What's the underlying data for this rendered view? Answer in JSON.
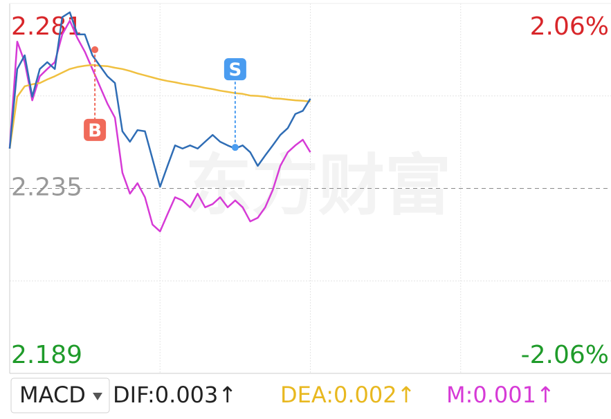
{
  "chart_data": {
    "type": "line",
    "xlim": [
      0,
      240
    ],
    "ylim": [
      2.189,
      2.281
    ],
    "yticks": [
      {
        "value": 2.281,
        "color": "#d8262a"
      },
      {
        "value": 2.235,
        "color": "#999999"
      },
      {
        "value": 2.189,
        "color": "#1f9b2a"
      }
    ],
    "y2lim": [
      -2.06,
      2.06
    ],
    "y2ticks": [
      {
        "value": 2.06,
        "label": "2.06%",
        "color": "#d8262a"
      },
      {
        "value": -2.06,
        "label": "-2.06%",
        "color": "#1f9b2a"
      }
    ],
    "x": [
      0,
      3,
      6,
      9,
      12,
      15,
      18,
      21,
      24,
      27,
      30,
      33,
      36,
      39,
      42,
      45,
      48,
      51,
      54,
      57,
      60,
      63,
      66,
      69,
      72,
      75,
      78,
      81,
      84,
      87,
      90,
      93,
      96,
      99,
      102,
      105,
      108,
      111,
      114,
      117,
      120
    ],
    "series": [
      {
        "color": "#d63ad6",
        "values": [
          2.2449,
          2.2715,
          2.2664,
          2.2569,
          2.2629,
          2.2647,
          2.2664,
          2.2733,
          2.2767,
          2.2724,
          2.269,
          2.2647,
          2.2604,
          2.2561,
          2.2526,
          2.2389,
          2.2337,
          2.2363,
          2.2328,
          2.226,
          2.2243,
          2.2286,
          2.2328,
          2.232,
          2.2303,
          2.2337,
          2.2303,
          2.2311,
          2.2328,
          2.2303,
          2.232,
          2.2303,
          2.2268,
          2.2277,
          2.2303,
          2.2346,
          2.2406,
          2.244,
          2.2457,
          2.2471,
          2.244
        ]
      },
      {
        "color": "#f0c040",
        "values": [
          2.2449,
          2.2578,
          2.2604,
          2.2609,
          2.2612,
          2.2621,
          2.2629,
          2.2638,
          2.2647,
          2.2652,
          2.2655,
          2.2657,
          2.2655,
          2.2654,
          2.265,
          2.2647,
          2.2642,
          2.2636,
          2.2631,
          2.2626,
          2.2621,
          2.2617,
          2.2614,
          2.261,
          2.2607,
          2.2604,
          2.26,
          2.2597,
          2.2593,
          2.259,
          2.2587,
          2.2585,
          2.2581,
          2.258,
          2.2578,
          2.2574,
          2.2573,
          2.2571,
          2.2569,
          2.2568,
          2.2566
        ]
      },
      {
        "color": "#2f6db5",
        "values": [
          2.2449,
          2.2647,
          2.2681,
          2.2578,
          2.2647,
          2.2664,
          2.2647,
          2.2776,
          2.2788,
          2.2733,
          2.2733,
          2.2681,
          2.2655,
          2.2629,
          2.2612,
          2.2492,
          2.2466,
          2.2495,
          2.2492,
          2.2423,
          2.2354,
          2.2406,
          2.2457,
          2.2449,
          2.2457,
          2.2449,
          2.2466,
          2.2483,
          2.2466,
          2.2457,
          2.2449,
          2.2457,
          2.244,
          2.2406,
          2.2432,
          2.2457,
          2.2483,
          2.25,
          2.2535,
          2.2543,
          2.2573
        ]
      }
    ],
    "annotations": [
      {
        "label": "B",
        "x": 34,
        "y": 2.2695,
        "color": "#f06a5a",
        "side": "below"
      },
      {
        "label": "S",
        "x": 90,
        "y": 2.2452,
        "color": "#4a9cf0",
        "side": "above"
      }
    ],
    "watermark": "东方财富",
    "indicator": "MACD",
    "indicator_values": [
      {
        "text": "DIF:0.003↑",
        "color": "#222222"
      },
      {
        "text": "DEA:0.002↑",
        "color": "#e8b820"
      },
      {
        "text": "M:0.001↑",
        "color": "#d63ad6"
      }
    ]
  }
}
